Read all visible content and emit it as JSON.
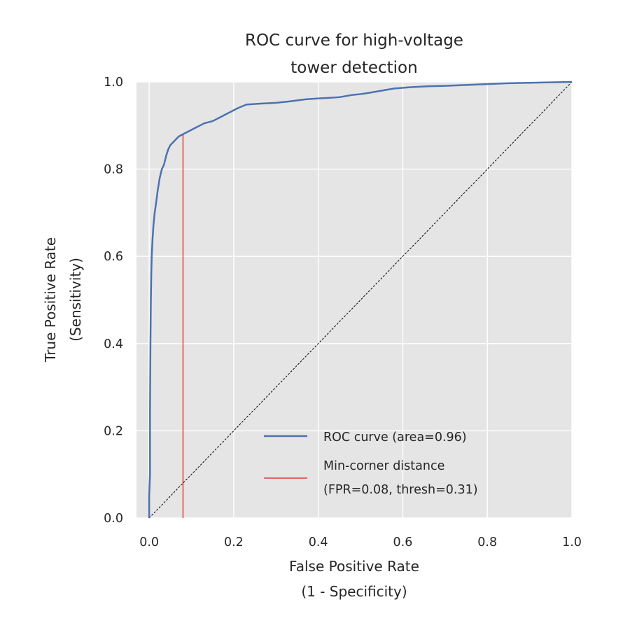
{
  "chart_data": {
    "type": "line",
    "title_lines": [
      "ROC curve for high-voltage",
      "tower detection"
    ],
    "xlabel_lines": [
      "False Positive Rate",
      "(1 - Specificity)"
    ],
    "ylabel_lines": [
      "True Positive Rate",
      "(Sensitivity)"
    ],
    "xlim": [
      -0.03,
      1.0
    ],
    "ylim": [
      0.0,
      1.0
    ],
    "xticks": [
      0.0,
      0.2,
      0.4,
      0.6,
      0.8,
      1.0
    ],
    "yticks": [
      0.0,
      0.2,
      0.4,
      0.6,
      0.8,
      1.0
    ],
    "xtick_labels": [
      "0.0",
      "0.2",
      "0.4",
      "0.6",
      "0.8",
      "1.0"
    ],
    "ytick_labels": [
      "0.0",
      "0.2",
      "0.4",
      "0.6",
      "0.8",
      "1.0"
    ],
    "grid": true,
    "legend_position": "lower-right",
    "colors": {
      "roc": "#4c72b0",
      "marker": "#e31a1c",
      "background": "#e5e5e5",
      "grid": "#ffffff",
      "diagonal": "#000000"
    },
    "series": [
      {
        "name": "ROC curve (area=0.96)",
        "x": [
          0.0,
          0.0,
          0.002,
          0.002,
          0.003,
          0.004,
          0.005,
          0.006,
          0.008,
          0.01,
          0.013,
          0.016,
          0.02,
          0.025,
          0.03,
          0.035,
          0.04,
          0.045,
          0.05,
          0.055,
          0.06,
          0.065,
          0.07,
          0.08,
          0.09,
          0.1,
          0.11,
          0.12,
          0.13,
          0.15,
          0.17,
          0.19,
          0.21,
          0.23,
          0.26,
          0.3,
          0.33,
          0.37,
          0.4,
          0.42,
          0.45,
          0.48,
          0.5,
          0.52,
          0.55,
          0.58,
          0.62,
          0.66,
          0.7,
          0.75,
          0.8,
          0.85,
          0.9,
          0.95,
          1.0
        ],
        "y": [
          0.0,
          0.05,
          0.1,
          0.25,
          0.4,
          0.5,
          0.56,
          0.6,
          0.64,
          0.67,
          0.7,
          0.72,
          0.75,
          0.78,
          0.8,
          0.81,
          0.83,
          0.845,
          0.855,
          0.86,
          0.865,
          0.87,
          0.875,
          0.88,
          0.885,
          0.89,
          0.895,
          0.9,
          0.905,
          0.91,
          0.92,
          0.93,
          0.94,
          0.948,
          0.95,
          0.952,
          0.955,
          0.96,
          0.962,
          0.963,
          0.965,
          0.97,
          0.972,
          0.975,
          0.98,
          0.985,
          0.988,
          0.99,
          0.991,
          0.993,
          0.995,
          0.997,
          0.998,
          0.999,
          1.0
        ]
      },
      {
        "name": "Min-corner distance (FPR=0.08, thresh=0.31)",
        "legend_lines": [
          "Min-corner distance",
          "(FPR=0.08, thresh=0.31)"
        ],
        "x": [
          0.08,
          0.08
        ],
        "y": [
          0.0,
          0.88
        ]
      },
      {
        "name": "chance",
        "x": [
          0.0,
          1.0
        ],
        "y": [
          0.0,
          1.0
        ]
      }
    ]
  }
}
